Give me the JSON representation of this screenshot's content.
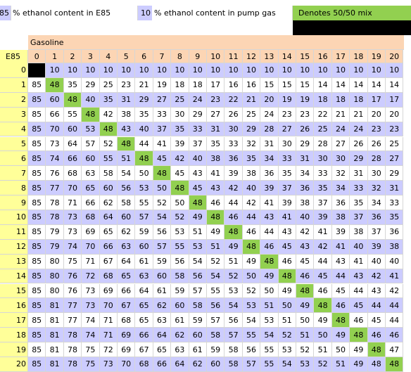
{
  "header": {
    "e85_value": "85",
    "e85_label": "% ethanol content in E85",
    "pump_value": "10",
    "pump_label": "% ethanol content in pump gas",
    "legend_label": "Denotes 50/50 mix"
  },
  "table": {
    "gasoline_label": "Gasoline",
    "e85_axis_label": "E85",
    "col_headers": [
      "0",
      "1",
      "2",
      "3",
      "4",
      "5",
      "6",
      "7",
      "8",
      "9",
      "10",
      "11",
      "12",
      "13",
      "14",
      "15",
      "16",
      "17",
      "18",
      "19",
      "20"
    ],
    "row_headers": [
      "0",
      "1",
      "2",
      "3",
      "4",
      "5",
      "6",
      "7",
      "8",
      "9",
      "10",
      "11",
      "12",
      "13",
      "14",
      "15",
      "16",
      "17",
      "18",
      "19",
      "20"
    ],
    "rows": [
      [
        "",
        "10",
        "10",
        "10",
        "10",
        "10",
        "10",
        "10",
        "10",
        "10",
        "10",
        "10",
        "10",
        "10",
        "10",
        "10",
        "10",
        "10",
        "10",
        "10",
        "10"
      ],
      [
        "85",
        "48",
        "35",
        "29",
        "25",
        "23",
        "21",
        "19",
        "18",
        "18",
        "17",
        "16",
        "16",
        "15",
        "15",
        "15",
        "14",
        "14",
        "14",
        "14",
        "14"
      ],
      [
        "85",
        "60",
        "48",
        "40",
        "35",
        "31",
        "29",
        "27",
        "25",
        "24",
        "23",
        "22",
        "21",
        "20",
        "19",
        "19",
        "18",
        "18",
        "18",
        "17",
        "17"
      ],
      [
        "85",
        "66",
        "55",
        "48",
        "42",
        "38",
        "35",
        "33",
        "30",
        "29",
        "27",
        "26",
        "25",
        "24",
        "23",
        "23",
        "22",
        "21",
        "21",
        "20",
        "20"
      ],
      [
        "85",
        "70",
        "60",
        "53",
        "48",
        "43",
        "40",
        "37",
        "35",
        "33",
        "31",
        "30",
        "29",
        "28",
        "27",
        "26",
        "25",
        "24",
        "24",
        "23",
        "23"
      ],
      [
        "85",
        "73",
        "64",
        "57",
        "52",
        "48",
        "44",
        "41",
        "39",
        "37",
        "35",
        "33",
        "32",
        "31",
        "30",
        "29",
        "28",
        "27",
        "26",
        "26",
        "25"
      ],
      [
        "85",
        "74",
        "66",
        "60",
        "55",
        "51",
        "48",
        "45",
        "42",
        "40",
        "38",
        "36",
        "35",
        "34",
        "33",
        "31",
        "30",
        "30",
        "29",
        "28",
        "27"
      ],
      [
        "85",
        "76",
        "68",
        "63",
        "58",
        "54",
        "50",
        "48",
        "45",
        "43",
        "41",
        "39",
        "38",
        "36",
        "35",
        "34",
        "33",
        "32",
        "31",
        "30",
        "29"
      ],
      [
        "85",
        "77",
        "70",
        "65",
        "60",
        "56",
        "53",
        "50",
        "48",
        "45",
        "43",
        "42",
        "40",
        "39",
        "37",
        "36",
        "35",
        "34",
        "33",
        "32",
        "31"
      ],
      [
        "85",
        "78",
        "71",
        "66",
        "62",
        "58",
        "55",
        "52",
        "50",
        "48",
        "46",
        "44",
        "42",
        "41",
        "39",
        "38",
        "37",
        "36",
        "35",
        "34",
        "33"
      ],
      [
        "85",
        "78",
        "73",
        "68",
        "64",
        "60",
        "57",
        "54",
        "52",
        "49",
        "48",
        "46",
        "44",
        "43",
        "41",
        "40",
        "39",
        "38",
        "37",
        "36",
        "35"
      ],
      [
        "85",
        "79",
        "73",
        "69",
        "65",
        "62",
        "59",
        "56",
        "53",
        "51",
        "49",
        "48",
        "46",
        "44",
        "43",
        "42",
        "41",
        "39",
        "38",
        "37",
        "36"
      ],
      [
        "85",
        "79",
        "74",
        "70",
        "66",
        "63",
        "60",
        "57",
        "55",
        "53",
        "51",
        "49",
        "48",
        "46",
        "45",
        "43",
        "42",
        "41",
        "40",
        "39",
        "38"
      ],
      [
        "85",
        "80",
        "75",
        "71",
        "67",
        "64",
        "61",
        "59",
        "56",
        "54",
        "52",
        "51",
        "49",
        "48",
        "46",
        "45",
        "44",
        "43",
        "41",
        "40",
        "40"
      ],
      [
        "85",
        "80",
        "76",
        "72",
        "68",
        "65",
        "63",
        "60",
        "58",
        "56",
        "54",
        "52",
        "50",
        "49",
        "48",
        "46",
        "45",
        "44",
        "43",
        "42",
        "41"
      ],
      [
        "85",
        "80",
        "76",
        "73",
        "69",
        "66",
        "64",
        "61",
        "59",
        "57",
        "55",
        "53",
        "52",
        "50",
        "49",
        "48",
        "46",
        "45",
        "44",
        "43",
        "42"
      ],
      [
        "85",
        "81",
        "77",
        "73",
        "70",
        "67",
        "65",
        "62",
        "60",
        "58",
        "56",
        "54",
        "53",
        "51",
        "50",
        "49",
        "48",
        "46",
        "45",
        "44",
        "44"
      ],
      [
        "85",
        "81",
        "77",
        "74",
        "71",
        "68",
        "65",
        "63",
        "61",
        "59",
        "57",
        "56",
        "54",
        "53",
        "51",
        "50",
        "49",
        "48",
        "46",
        "45",
        "44"
      ],
      [
        "85",
        "81",
        "78",
        "74",
        "71",
        "69",
        "66",
        "64",
        "62",
        "60",
        "58",
        "57",
        "55",
        "54",
        "52",
        "51",
        "50",
        "49",
        "48",
        "46",
        "46"
      ],
      [
        "85",
        "81",
        "78",
        "75",
        "72",
        "69",
        "67",
        "65",
        "63",
        "61",
        "59",
        "58",
        "56",
        "55",
        "53",
        "52",
        "51",
        "50",
        "49",
        "48",
        "47"
      ],
      [
        "85",
        "81",
        "78",
        "75",
        "73",
        "70",
        "68",
        "66",
        "64",
        "62",
        "60",
        "58",
        "57",
        "55",
        "54",
        "53",
        "52",
        "51",
        "49",
        "48",
        "48"
      ]
    ]
  },
  "colors": {
    "lavender": "#ccccff",
    "lightyellow": "#ffff99",
    "peach": "#fcd5b4",
    "green": "#92d050",
    "black": "#000000",
    "white": "#ffffff",
    "gridline": "#d6d6d6"
  }
}
